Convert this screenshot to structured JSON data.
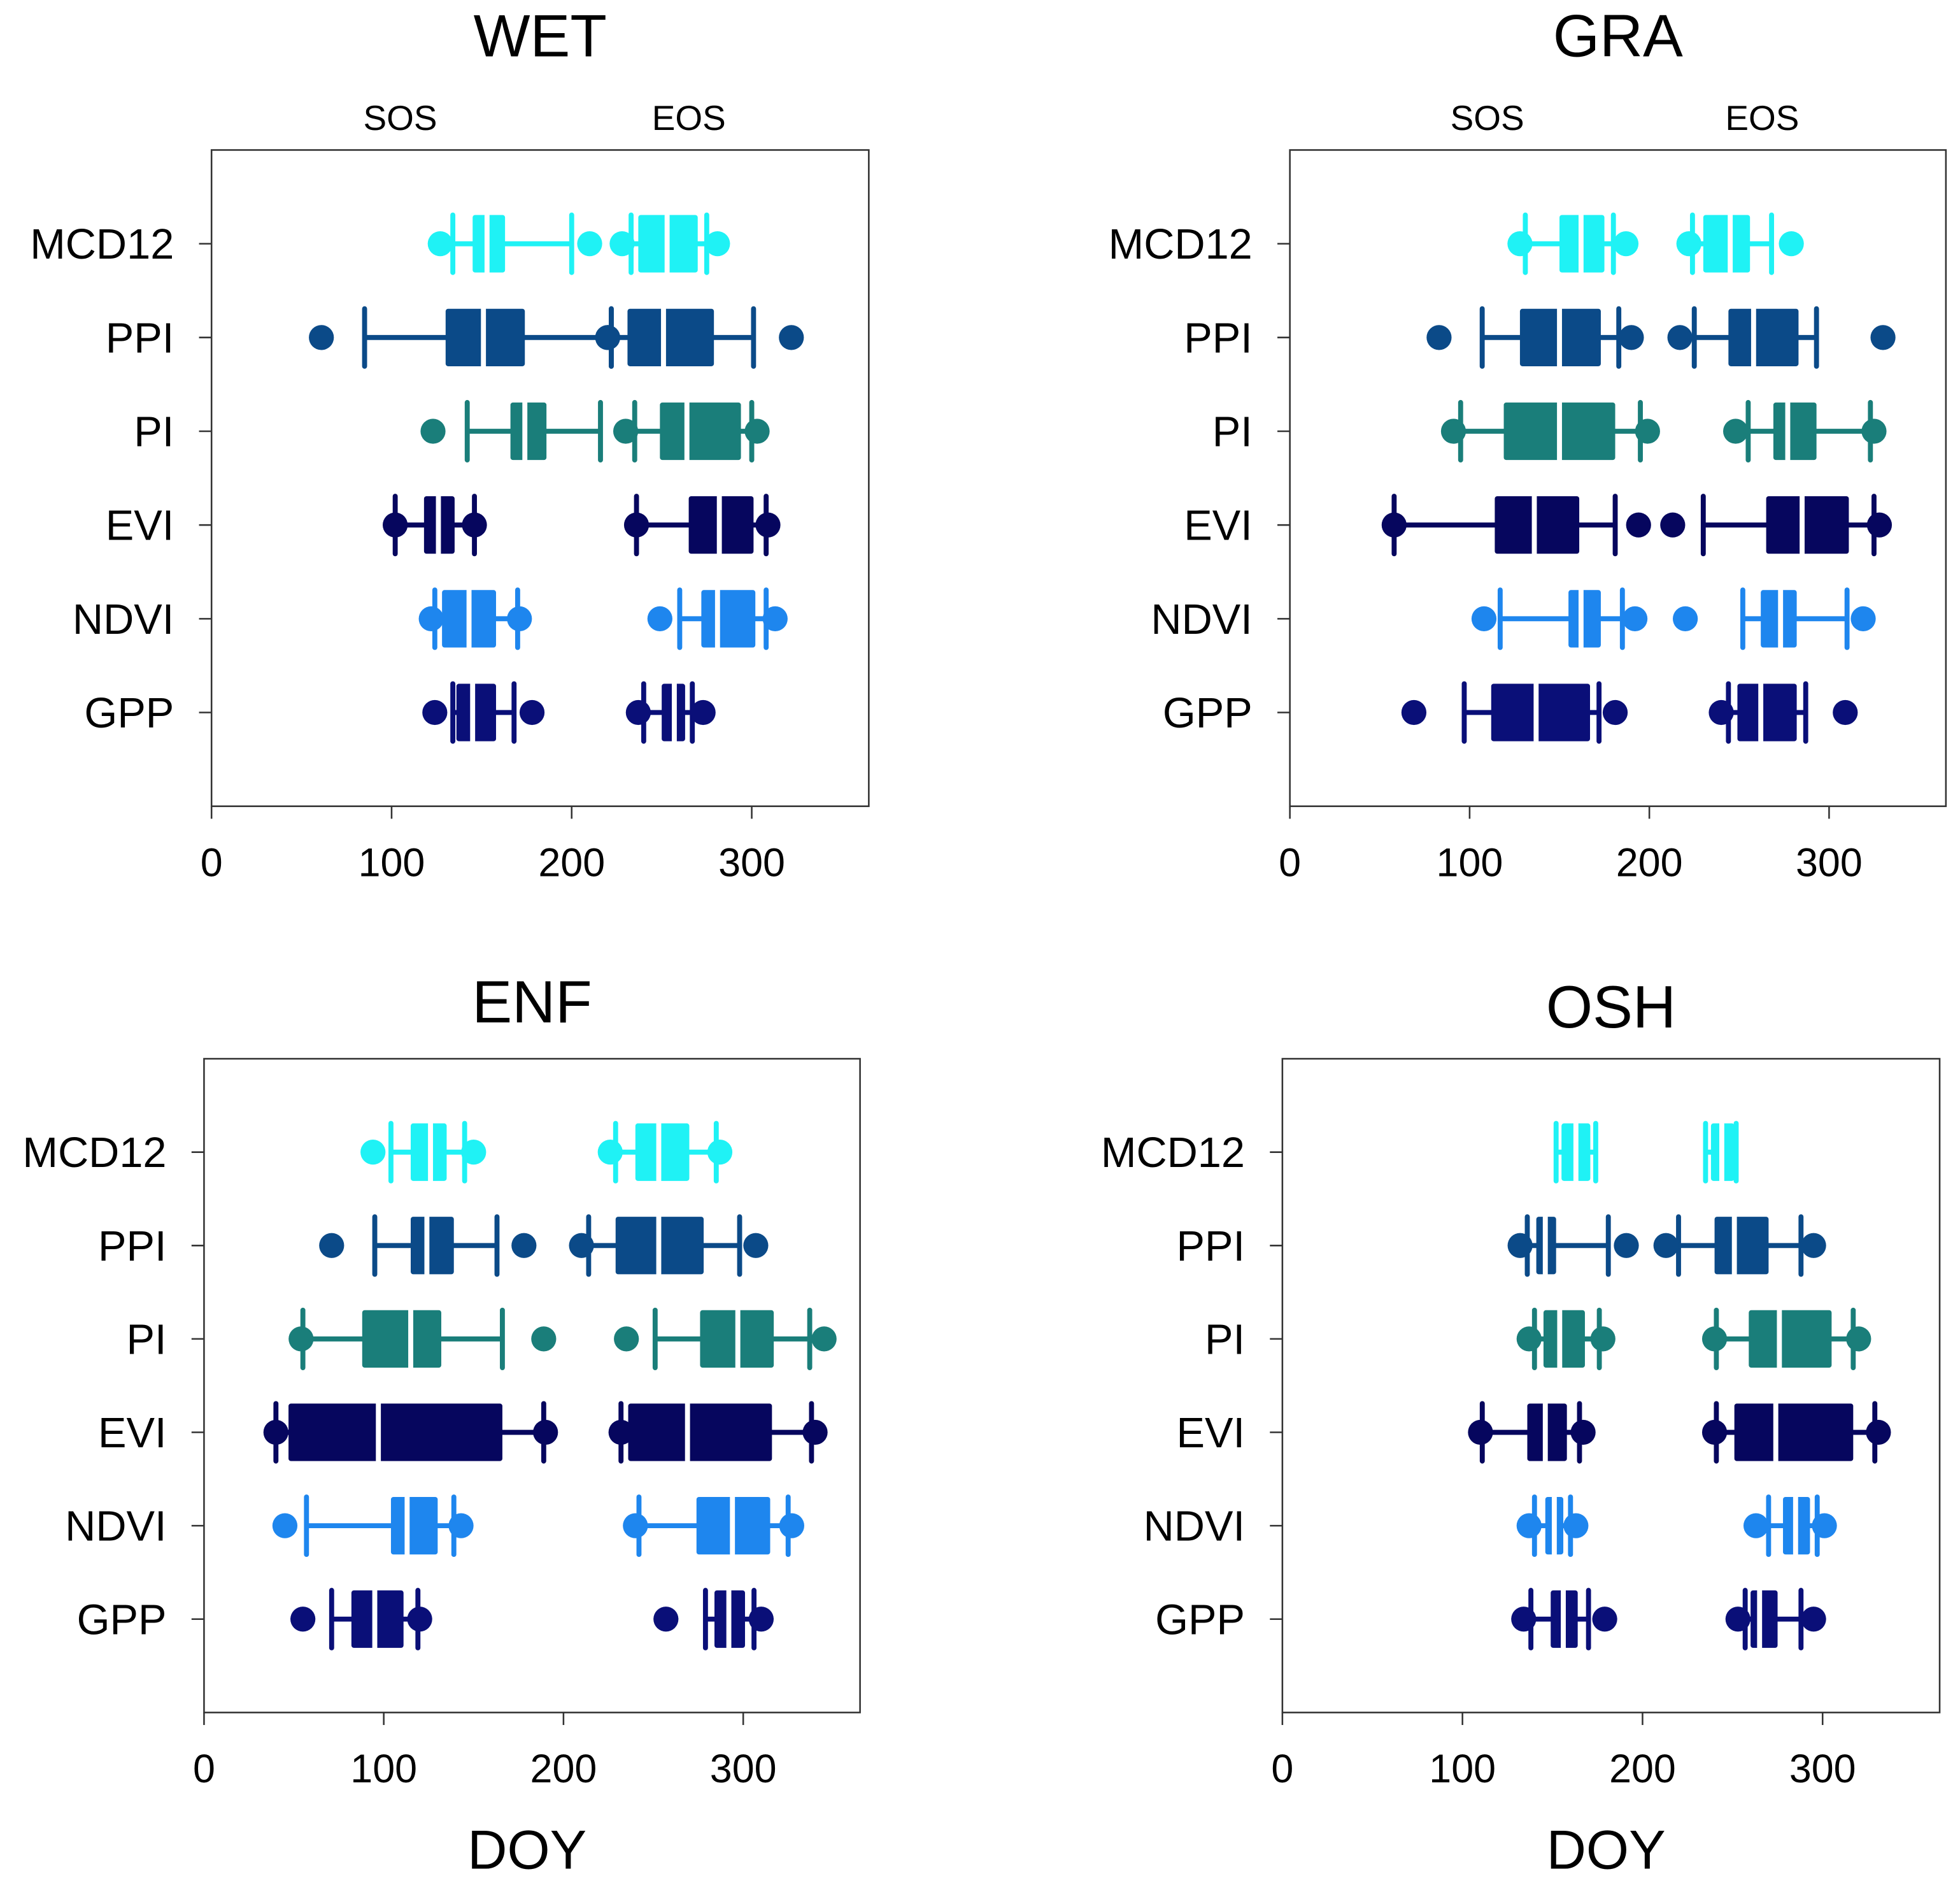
{
  "chart_data": [
    {
      "type": "box",
      "title": "WET",
      "group_labels": [
        "SOS",
        "EOS"
      ],
      "xlabel": "",
      "xlim": [
        0,
        365
      ],
      "xticks": [
        "0",
        "100",
        "200",
        "300"
      ],
      "categories": [
        "MCD12",
        "PPI",
        "PI",
        "EVI",
        "NDVI",
        "GPP"
      ],
      "series": [
        {
          "name": "MCD12",
          "color": "#1ff2f5",
          "SOS": {
            "out_low": 127,
            "wlow": 134,
            "q1": 145,
            "median": 153,
            "q3": 163,
            "whigh": 200,
            "out_high": 210
          },
          "EOS": {
            "out_low": 228,
            "wlow": 233,
            "q1": 237,
            "median": 253,
            "q3": 270,
            "whigh": 275,
            "out_high": 281
          }
        },
        {
          "name": "PPI",
          "color": "#0b4a88",
          "SOS": {
            "out_low": 61,
            "wlow": 85,
            "q1": 130,
            "median": 151,
            "q3": 174,
            "whigh": 222,
            "out_high": 220
          },
          "EOS": {
            "out_low": 220,
            "wlow": 222,
            "q1": 231,
            "median": 251,
            "q3": 279,
            "whigh": 301,
            "out_high": 322
          }
        },
        {
          "name": "PI",
          "color": "#1a7e7a",
          "SOS": {
            "out_low": 123,
            "wlow": 142,
            "q1": 166,
            "median": 174,
            "q3": 186,
            "whigh": 216,
            "out_high": null
          },
          "EOS": {
            "out_low": 230,
            "wlow": 235,
            "q1": 249,
            "median": 264,
            "q3": 294,
            "whigh": 300,
            "out_high": 303
          }
        },
        {
          "name": "EVI",
          "color": "#06065e",
          "SOS": {
            "out_low": 102,
            "wlow": 102,
            "q1": 118,
            "median": 126,
            "q3": 135,
            "whigh": 146,
            "out_high": 146
          },
          "EOS": {
            "out_low": 236,
            "wlow": 236,
            "q1": 265,
            "median": 282,
            "q3": 301,
            "whigh": 308,
            "out_high": 309
          }
        },
        {
          "name": "NDVI",
          "color": "#1e86ee",
          "SOS": {
            "out_low": 122,
            "wlow": 124,
            "q1": 128,
            "median": 143,
            "q3": 158,
            "whigh": 170,
            "out_high": 171
          },
          "EOS": {
            "out_low": 249,
            "wlow": 260,
            "q1": 272,
            "median": 281,
            "q3": 302,
            "whigh": 308,
            "out_high": 313
          }
        },
        {
          "name": "GPP",
          "color": "#0a0f78",
          "SOS": {
            "out_low": 124,
            "wlow": 134,
            "q1": 136,
            "median": 145,
            "q3": 158,
            "whigh": 168,
            "out_high": 178
          },
          "EOS": {
            "out_low": 237,
            "wlow": 240,
            "q1": 250,
            "median": 257,
            "q3": 263,
            "whigh": 267,
            "out_high": 273
          }
        }
      ]
    },
    {
      "type": "box",
      "title": "GRA",
      "group_labels": [
        "SOS",
        "EOS"
      ],
      "xlabel": "",
      "xlim": [
        0,
        365
      ],
      "xticks": [
        "0",
        "100",
        "200",
        "300"
      ],
      "categories": [
        "MCD12",
        "PPI",
        "PI",
        "EVI",
        "NDVI",
        "GPP"
      ],
      "series": [
        {
          "name": "MCD12",
          "color": "#1ff2f5",
          "SOS": {
            "out_low": 128,
            "wlow": 131,
            "q1": 150,
            "median": 162,
            "q3": 175,
            "whigh": 180,
            "out_high": 187
          },
          "EOS": {
            "out_low": 222,
            "wlow": 224,
            "q1": 230,
            "median": 245,
            "q3": 256,
            "whigh": 268,
            "out_high": 279
          }
        },
        {
          "name": "PPI",
          "color": "#0b4a88",
          "SOS": {
            "out_low": 83,
            "wlow": 107,
            "q1": 128,
            "median": 150,
            "q3": 173,
            "whigh": 183,
            "out_high": 190
          },
          "EOS": {
            "out_low": 217,
            "wlow": 225,
            "q1": 244,
            "median": 258,
            "q3": 283,
            "whigh": 293,
            "out_high": 330
          }
        },
        {
          "name": "PI",
          "color": "#1a7e7a",
          "SOS": {
            "out_low": 91,
            "wlow": 95,
            "q1": 119,
            "median": 150,
            "q3": 181,
            "whigh": 195,
            "out_high": 199
          },
          "EOS": {
            "out_low": 248,
            "wlow": 255,
            "q1": 269,
            "median": 277,
            "q3": 293,
            "whigh": 323,
            "out_high": 325
          }
        },
        {
          "name": "EVI",
          "color": "#06065e",
          "SOS": {
            "out_low": 58,
            "wlow": 58,
            "q1": 114,
            "median": 136,
            "q3": 161,
            "whigh": 181,
            "out_high": 194
          },
          "EOS": {
            "out_low": 213,
            "wlow": 230,
            "q1": 265,
            "median": 285,
            "q3": 311,
            "whigh": 325,
            "out_high": 328
          }
        },
        {
          "name": "NDVI",
          "color": "#1e86ee",
          "SOS": {
            "out_low": 108,
            "wlow": 117,
            "q1": 155,
            "median": 162,
            "q3": 173,
            "whigh": 185,
            "out_high": 192
          },
          "EOS": {
            "out_low": 220,
            "wlow": 252,
            "q1": 262,
            "median": 273,
            "q3": 282,
            "whigh": 310,
            "out_high": 319
          }
        },
        {
          "name": "GPP",
          "color": "#0a0f78",
          "SOS": {
            "out_low": 69,
            "wlow": 97,
            "q1": 112,
            "median": 137,
            "q3": 167,
            "whigh": 172,
            "out_high": 181
          },
          "EOS": {
            "out_low": 240,
            "wlow": 244,
            "q1": 249,
            "median": 262,
            "q3": 282,
            "whigh": 287,
            "out_high": 309
          }
        }
      ]
    },
    {
      "type": "box",
      "title": "ENF",
      "group_labels": [],
      "xlabel": "DOY",
      "xlim": [
        0,
        365
      ],
      "xticks": [
        "0",
        "100",
        "200",
        "300"
      ],
      "categories": [
        "MCD12",
        "PPI",
        "PI",
        "EVI",
        "NDVI",
        "GPP"
      ],
      "series": [
        {
          "name": "MCD12",
          "color": "#1ff2f5",
          "SOS": {
            "out_low": 94,
            "wlow": 104,
            "q1": 115,
            "median": 126,
            "q3": 135,
            "whigh": 145,
            "out_high": 150
          },
          "EOS": {
            "out_low": 226,
            "wlow": 229,
            "q1": 240,
            "median": 253,
            "q3": 270,
            "whigh": 285,
            "out_high": 287
          }
        },
        {
          "name": "PPI",
          "color": "#0b4a88",
          "SOS": {
            "out_low": 71,
            "wlow": 95,
            "q1": 115,
            "median": 124,
            "q3": 139,
            "whigh": 163,
            "out_high": 178
          },
          "EOS": {
            "out_low": 210,
            "wlow": 214,
            "q1": 229,
            "median": 253,
            "q3": 278,
            "whigh": 298,
            "out_high": 307
          }
        },
        {
          "name": "PI",
          "color": "#1a7e7a",
          "SOS": {
            "out_low": 54,
            "wlow": 55,
            "q1": 88,
            "median": 115,
            "q3": 132,
            "whigh": 166,
            "out_high": 189
          },
          "EOS": {
            "out_low": 235,
            "wlow": 251,
            "q1": 276,
            "median": 297,
            "q3": 317,
            "whigh": 337,
            "out_high": 345
          }
        },
        {
          "name": "EVI",
          "color": "#06065e",
          "SOS": {
            "out_low": 40,
            "wlow": 40,
            "q1": 47,
            "median": 97,
            "q3": 166,
            "whigh": 189,
            "out_high": 190
          },
          "EOS": {
            "out_low": 232,
            "wlow": 232,
            "q1": 236,
            "median": 269,
            "q3": 316,
            "whigh": 338,
            "out_high": 340
          }
        },
        {
          "name": "NDVI",
          "color": "#1e86ee",
          "SOS": {
            "out_low": 45,
            "wlow": 57,
            "q1": 104,
            "median": 113,
            "q3": 130,
            "whigh": 139,
            "out_high": 143
          },
          "EOS": {
            "out_low": 240,
            "wlow": 242,
            "q1": 274,
            "median": 294,
            "q3": 315,
            "whigh": 325,
            "out_high": 327
          }
        },
        {
          "name": "GPP",
          "color": "#0a0f78",
          "SOS": {
            "out_low": 55,
            "wlow": 71,
            "q1": 82,
            "median": 95,
            "q3": 111,
            "whigh": 119,
            "out_high": 120
          },
          "EOS": {
            "out_low": 257,
            "wlow": 279,
            "q1": 284,
            "median": 292,
            "q3": 301,
            "whigh": 306,
            "out_high": 310
          }
        }
      ]
    },
    {
      "type": "box",
      "title": "OSH",
      "group_labels": [],
      "xlabel": "DOY",
      "xlim": [
        0,
        365
      ],
      "xticks": [
        "0",
        "100",
        "200",
        "300"
      ],
      "categories": [
        "MCD12",
        "PPI",
        "PI",
        "EVI",
        "NDVI",
        "GPP"
      ],
      "series": [
        {
          "name": "MCD12",
          "color": "#1ff2f5",
          "SOS": {
            "out_low": null,
            "wlow": 152,
            "q1": 155,
            "median": 163,
            "q3": 171,
            "whigh": 174,
            "out_high": null
          },
          "EOS": {
            "out_low": null,
            "wlow": 235,
            "q1": 238,
            "median": 244,
            "q3": 251,
            "whigh": 252,
            "out_high": null
          }
        },
        {
          "name": "PPI",
          "color": "#0b4a88",
          "SOS": {
            "out_low": 132,
            "wlow": 136,
            "q1": 141,
            "median": 146,
            "q3": 152,
            "whigh": 181,
            "out_high": 191
          },
          "EOS": {
            "out_low": 213,
            "wlow": 220,
            "q1": 240,
            "median": 251,
            "q3": 270,
            "whigh": 288,
            "out_high": 295
          }
        },
        {
          "name": "PI",
          "color": "#1a7e7a",
          "SOS": {
            "out_low": 137,
            "wlow": 140,
            "q1": 145,
            "median": 154,
            "q3": 168,
            "whigh": 176,
            "out_high": 178
          },
          "EOS": {
            "out_low": 240,
            "wlow": 241,
            "q1": 259,
            "median": 276,
            "q3": 305,
            "whigh": 317,
            "out_high": 320
          }
        },
        {
          "name": "EVI",
          "color": "#06065e",
          "SOS": {
            "out_low": 110,
            "wlow": 111,
            "q1": 136,
            "median": 146,
            "q3": 158,
            "whigh": 165,
            "out_high": 167
          },
          "EOS": {
            "out_low": 240,
            "wlow": 241,
            "q1": 251,
            "median": 274,
            "q3": 317,
            "whigh": 329,
            "out_high": 331
          }
        },
        {
          "name": "NDVI",
          "color": "#1e86ee",
          "SOS": {
            "out_low": 137,
            "wlow": 140,
            "q1": 146,
            "median": 151,
            "q3": 156,
            "whigh": 160,
            "out_high": 163
          },
          "EOS": {
            "out_low": 263,
            "wlow": 270,
            "q1": 278,
            "median": 285,
            "q3": 293,
            "whigh": 297,
            "out_high": 301
          }
        },
        {
          "name": "GPP",
          "color": "#0a0f78",
          "SOS": {
            "out_low": 134,
            "wlow": 138,
            "q1": 149,
            "median": 156,
            "q3": 164,
            "whigh": 170,
            "out_high": 179
          },
          "EOS": {
            "out_low": 253,
            "wlow": 257,
            "q1": 260,
            "median": 265,
            "q3": 275,
            "whigh": 288,
            "out_high": 295
          }
        }
      ]
    }
  ]
}
